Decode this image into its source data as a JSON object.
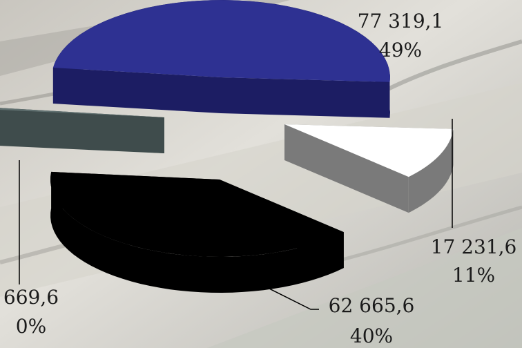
{
  "chart_data": {
    "type": "pie",
    "title": "",
    "slices": [
      {
        "value": 77319.1,
        "value_label": "77 319,1",
        "percent_label": "49%",
        "color": "#2e3192"
      },
      {
        "value": 17231.6,
        "value_label": "17 231,6",
        "percent_label": "11%",
        "color": "#ffffff"
      },
      {
        "value": 62665.6,
        "value_label": "62 665,6",
        "percent_label": "40%",
        "color": "#000000"
      },
      {
        "value": 669.6,
        "value_label": "669,6",
        "percent_label": "0%",
        "color": "#5f6f6f"
      }
    ],
    "style": "3d-exploded",
    "background": "banknotes photo"
  }
}
